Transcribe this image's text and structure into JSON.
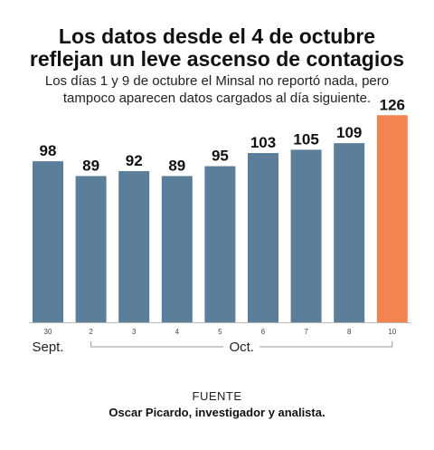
{
  "title_line1": "Los datos desde el 4 de octubre",
  "title_line2": "reflejan un leve ascenso de contagios",
  "subtitle_line1": "Los días 1 y 9 de octubre el Minsal no reportó nada, pero",
  "subtitle_line2": "tampoco aparecen datos cargados al día siguiente.",
  "source_label": "FUENTE",
  "source_name": "Oscar Picardo, investigador y analista.",
  "colors": {
    "bar": "#5b7f9b",
    "highlight": "#f2844f"
  },
  "chart_data": {
    "type": "bar",
    "categories": [
      "30",
      "2",
      "3",
      "4",
      "5",
      "6",
      "7",
      "8",
      "10"
    ],
    "values": [
      98,
      89,
      92,
      89,
      95,
      103,
      105,
      109,
      126
    ],
    "highlight_index": 8,
    "month_groups": [
      {
        "label": "Sept.",
        "from": 0,
        "to": 0
      },
      {
        "label": "Oct.",
        "from": 1,
        "to": 8
      }
    ],
    "ylim": [
      0,
      130
    ],
    "grid": false
  }
}
